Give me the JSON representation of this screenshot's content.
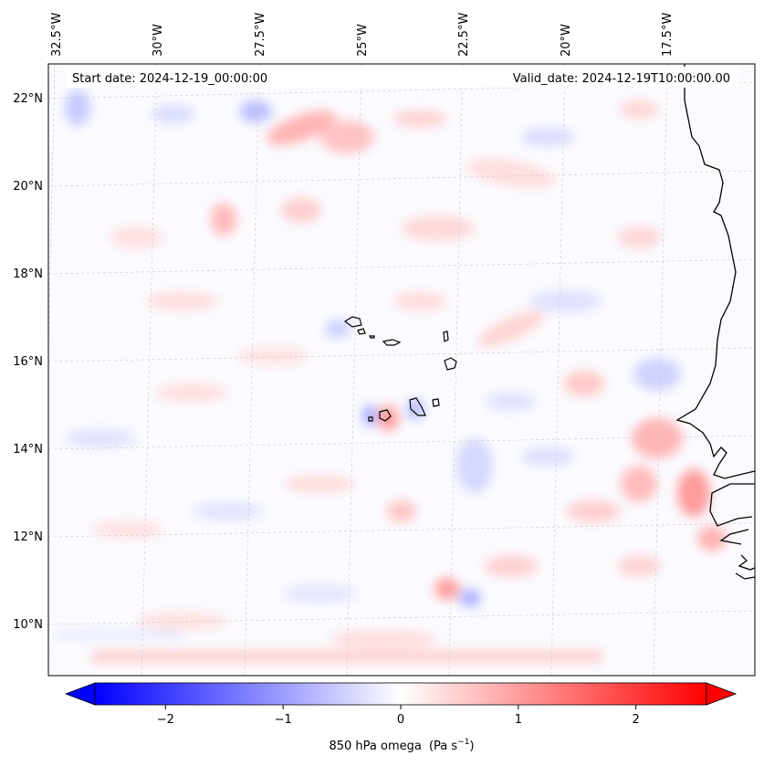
{
  "map": {
    "start_label": "Start date: 2024-12-19_00:00:00",
    "valid_label": "Valid_date: 2024-12-19T10:00:00.00",
    "variable": "850 hPa omega",
    "units_text": "(Pa s",
    "units_exp": "−1",
    "units_close": ")",
    "lon_labels": [
      "32.5°W",
      "30°W",
      "27.5°W",
      "25°W",
      "22.5°W",
      "20°W",
      "17.5°W"
    ],
    "lat_labels": [
      "22°N",
      "20°N",
      "18°N",
      "16°N",
      "14°N",
      "12°N",
      "10°N"
    ],
    "islands": [
      "Santo Antão",
      "São Vicente",
      "Santa Luzia",
      "São Nicolau",
      "Sal",
      "Boa Vista",
      "Maio",
      "Santiago",
      "Fogo",
      "Brava"
    ],
    "coastline": "West Africa (Mauritania, Senegal, Gambia, Guinea-Bissau)"
  },
  "colorbar": {
    "ticks": [
      "−2",
      "−1",
      "0",
      "1",
      "2"
    ],
    "min": -2.6,
    "max": 2.6,
    "low_color": "#0000ff",
    "mid_color": "#ffffff",
    "high_color": "#ff0000"
  }
}
